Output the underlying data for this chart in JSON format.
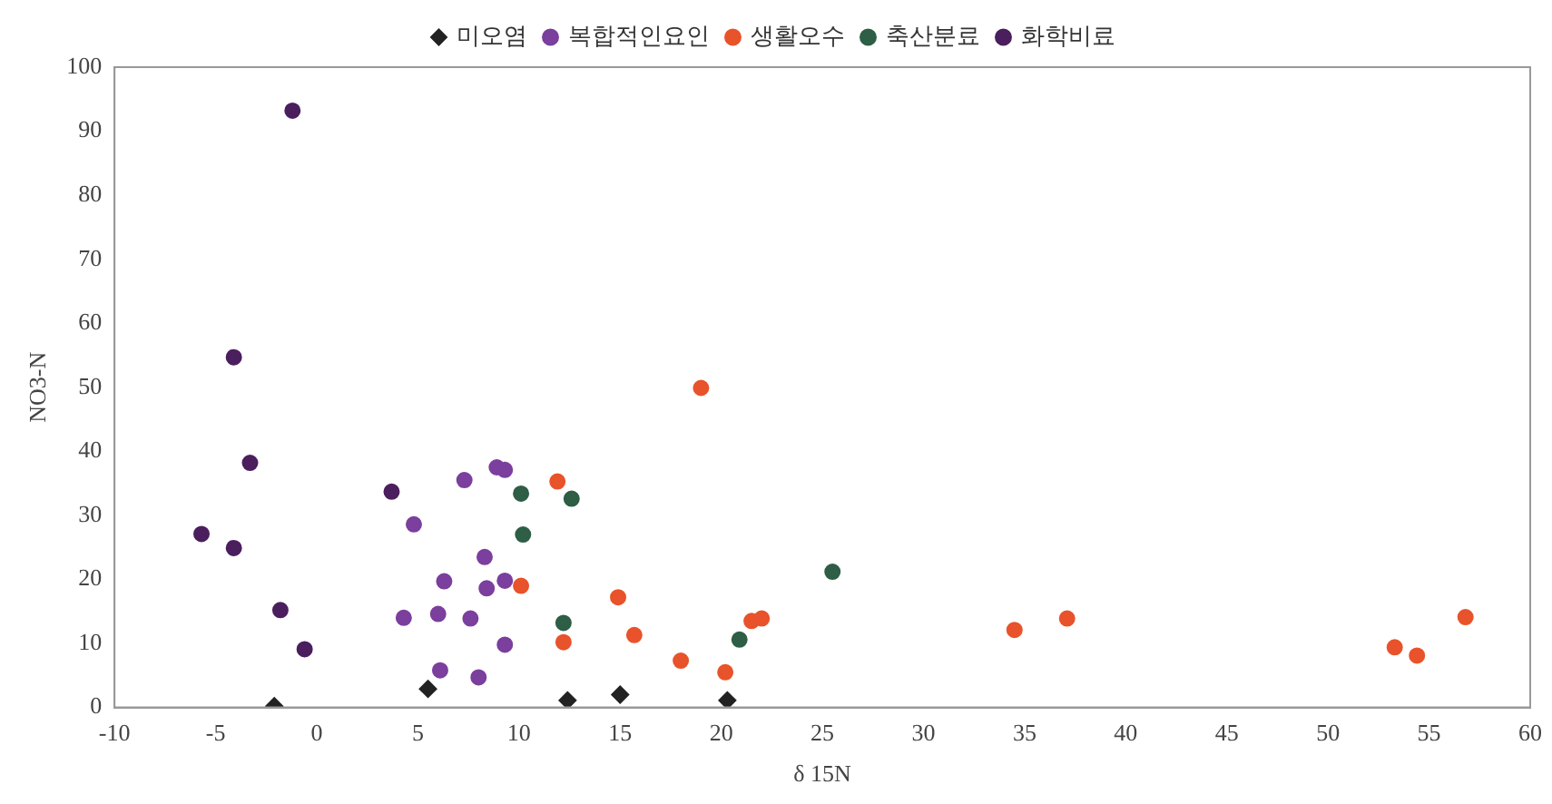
{
  "chart_data": {
    "type": "scatter",
    "xlabel": "δ 15N",
    "ylabel": "NO3-N",
    "xlim": [
      -10,
      60
    ],
    "xticks": [
      -10,
      -5,
      0,
      5,
      10,
      15,
      20,
      25,
      30,
      35,
      40,
      45,
      50,
      55,
      60
    ],
    "ylim": [
      0,
      100
    ],
    "yticks": [
      0,
      10,
      20,
      30,
      40,
      50,
      60,
      70,
      80,
      90,
      100
    ],
    "grid": false,
    "legend": "top",
    "series": [
      {
        "name": "미오염",
        "color": "#222222",
        "marker": "diamond",
        "x": [
          -2.1,
          5.5,
          12.4,
          15.0,
          20.3
        ],
        "values": [
          0.2,
          2.9,
          1.1,
          2.0,
          1.1
        ]
      },
      {
        "name": "복합적인요인",
        "color": "#7b3f9e",
        "marker": "circle",
        "x": [
          4.8,
          7.3,
          8.9,
          9.3,
          8.3,
          6.3,
          8.4,
          9.3,
          4.3,
          6.0,
          7.6,
          9.3,
          6.1,
          8.0
        ],
        "values": [
          28.6,
          35.5,
          37.5,
          37.1,
          23.5,
          19.7,
          18.6,
          19.8,
          14.0,
          14.6,
          13.9,
          9.8,
          5.8,
          4.7
        ]
      },
      {
        "name": "생활오수",
        "color": "#e8532b",
        "marker": "circle",
        "x": [
          11.9,
          10.1,
          12.2,
          14.9,
          15.7,
          19.0,
          18.0,
          20.2,
          21.5,
          22.0,
          34.5,
          37.1,
          53.3,
          54.4,
          56.8
        ],
        "values": [
          35.3,
          19.0,
          10.2,
          17.2,
          11.3,
          49.9,
          7.3,
          5.5,
          13.5,
          13.9,
          12.1,
          13.9,
          9.4,
          8.1,
          14.1
        ]
      },
      {
        "name": "축산분료",
        "color": "#2e5e45",
        "marker": "circle",
        "x": [
          10.1,
          12.6,
          10.2,
          12.2,
          20.9,
          25.5
        ],
        "values": [
          33.4,
          32.6,
          27.0,
          13.2,
          10.6,
          21.2
        ]
      },
      {
        "name": "화학비료",
        "color": "#4b1f5e",
        "marker": "circle",
        "x": [
          -1.2,
          -4.1,
          -3.3,
          -5.7,
          -4.1,
          -1.8,
          -0.6,
          3.7
        ],
        "values": [
          93.2,
          54.7,
          38.2,
          27.1,
          24.9,
          15.2,
          9.1,
          33.7
        ]
      }
    ]
  }
}
